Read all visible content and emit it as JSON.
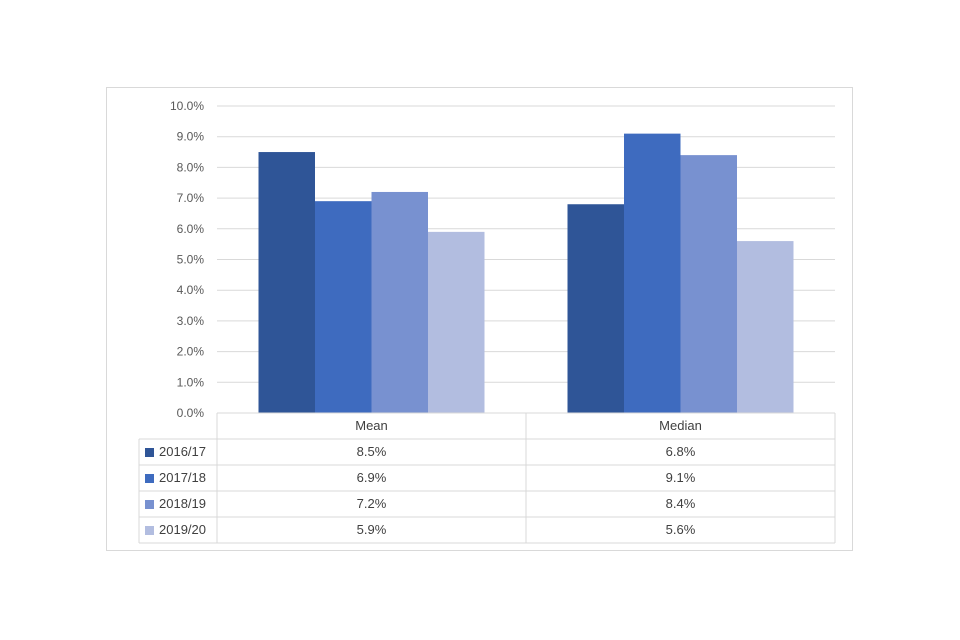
{
  "chart_data": {
    "type": "bar",
    "title": "",
    "xlabel": "",
    "ylabel": "",
    "categories": [
      "Mean",
      "Median"
    ],
    "series": [
      {
        "name": "2016/17",
        "values": [
          8.5,
          6.8
        ],
        "labels": [
          "8.5%",
          "6.8%"
        ],
        "color": "#2f5597"
      },
      {
        "name": "2017/18",
        "values": [
          6.9,
          9.1
        ],
        "labels": [
          "6.9%",
          "9.1%"
        ],
        "color": "#3e6bbf"
      },
      {
        "name": "2018/19",
        "values": [
          7.2,
          8.4
        ],
        "labels": [
          "7.2%",
          "8.4%"
        ],
        "color": "#7891d0"
      },
      {
        "name": "2019/20",
        "values": [
          5.9,
          5.6
        ],
        "labels": [
          "5.9%",
          "5.6%"
        ],
        "color": "#b2bde0"
      }
    ],
    "ylim": [
      0,
      10
    ],
    "yticks": [
      "0.0%",
      "1.0%",
      "2.0%",
      "3.0%",
      "4.0%",
      "5.0%",
      "6.0%",
      "7.0%",
      "8.0%",
      "9.0%",
      "10.0%"
    ],
    "grid": true,
    "legend": "data-table-below"
  },
  "colors": {
    "grid": "#d9d9d9",
    "table_border": "#d9d9d9",
    "text": "#404040",
    "frame_border": "#d9d9d9"
  }
}
